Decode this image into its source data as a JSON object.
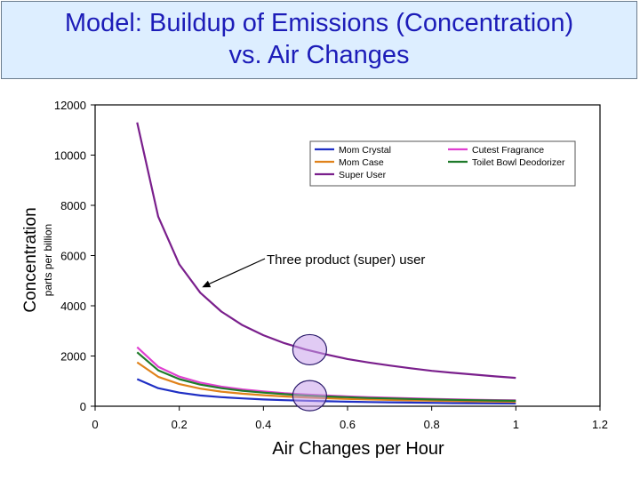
{
  "slide": {
    "title_line1": "Model: Buildup of Emissions (Concentration)",
    "title_line2": "vs. Air Changes"
  },
  "chart_data": {
    "type": "line",
    "title": "Model: Buildup of Emissions (Concentration) vs. Air Changes",
    "xlabel": "Air Changes per Hour",
    "ylabel": "Concentration",
    "ylabel_sub": "parts per billion",
    "xlim": [
      0,
      1.2
    ],
    "ylim": [
      0,
      12000
    ],
    "xticks": [
      0,
      0.2,
      0.4,
      0.6,
      0.8,
      1,
      1.2
    ],
    "xtick_labels": [
      "0",
      "0.2",
      "0.4",
      "0.6",
      "0.8",
      "1",
      "1.2"
    ],
    "yticks": [
      0,
      2000,
      4000,
      6000,
      8000,
      10000,
      12000
    ],
    "ytick_labels": [
      "0",
      "2000",
      "4000",
      "6000",
      "8000",
      "10000",
      "12000"
    ],
    "grid": false,
    "legend_position": "top-right",
    "x": [
      0.1,
      0.15,
      0.2,
      0.25,
      0.3,
      0.35,
      0.4,
      0.45,
      0.5,
      0.55,
      0.6,
      0.65,
      0.7,
      0.75,
      0.8,
      0.85,
      0.9,
      0.95,
      1.0
    ],
    "series": [
      {
        "name": "Mom Crystal",
        "color": "#1f2fc4",
        "values": [
          1080,
          720,
          540,
          430,
          360,
          310,
          270,
          240,
          220,
          200,
          180,
          165,
          155,
          145,
          135,
          125,
          120,
          115,
          110
        ]
      },
      {
        "name": "Mom Case",
        "color": "#e0821b",
        "values": [
          1750,
          1170,
          880,
          700,
          580,
          500,
          440,
          390,
          350,
          320,
          290,
          270,
          250,
          235,
          220,
          205,
          195,
          185,
          175
        ]
      },
      {
        "name": "Super User",
        "color": "#7a1f8c",
        "values": [
          11300,
          7550,
          5650,
          4520,
          3770,
          3230,
          2830,
          2510,
          2260,
          2060,
          1880,
          1740,
          1620,
          1510,
          1410,
          1330,
          1260,
          1190,
          1130
        ]
      },
      {
        "name": "Cutest Fragrance",
        "color": "#e03fd1",
        "values": [
          2350,
          1570,
          1180,
          940,
          780,
          670,
          590,
          520,
          470,
          430,
          390,
          360,
          335,
          315,
          295,
          275,
          260,
          245,
          235
        ]
      },
      {
        "name": "Toilet Bowl Deodorizer",
        "color": "#1e7a2a",
        "values": [
          2150,
          1430,
          1080,
          860,
          720,
          615,
          540,
          480,
          430,
          390,
          360,
          330,
          310,
          290,
          270,
          255,
          240,
          225,
          215
        ]
      }
    ],
    "annotations": [
      {
        "text": "Three product (super) user",
        "points_to": {
          "x": 0.25,
          "y": 4700
        }
      },
      {
        "type": "circle",
        "x": 0.51,
        "y": 2250
      },
      {
        "type": "circle",
        "x": 0.51,
        "y": 420
      }
    ]
  }
}
